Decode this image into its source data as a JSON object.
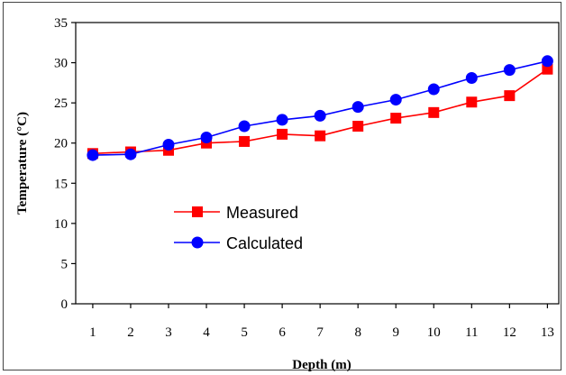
{
  "chart_data": {
    "type": "line",
    "title": "",
    "xlabel": "Depth (m)",
    "ylabel": "Temperature (°C)",
    "categories": [
      "1",
      "2",
      "3",
      "4",
      "5",
      "6",
      "7",
      "8",
      "9",
      "10",
      "11",
      "12",
      "13"
    ],
    "x": [
      1,
      2,
      3,
      4,
      5,
      6,
      7,
      8,
      9,
      10,
      11,
      12,
      13
    ],
    "ylim": [
      0,
      35
    ],
    "yticks": [
      "0",
      "5",
      "10",
      "15",
      "20",
      "25",
      "30",
      "35"
    ],
    "grid": false,
    "legend_position": "left-center",
    "series": [
      {
        "name": "Measured",
        "color": "#ff0000",
        "marker": "square",
        "values": [
          18.7,
          18.9,
          19.1,
          20.0,
          20.2,
          21.1,
          20.9,
          22.1,
          23.1,
          23.8,
          25.1,
          25.9,
          29.2
        ]
      },
      {
        "name": "Calculated",
        "color": "#0000ff",
        "marker": "circle",
        "values": [
          18.5,
          18.6,
          19.8,
          20.7,
          22.1,
          22.9,
          23.4,
          24.5,
          25.4,
          26.7,
          28.1,
          29.1,
          30.2
        ]
      }
    ]
  }
}
